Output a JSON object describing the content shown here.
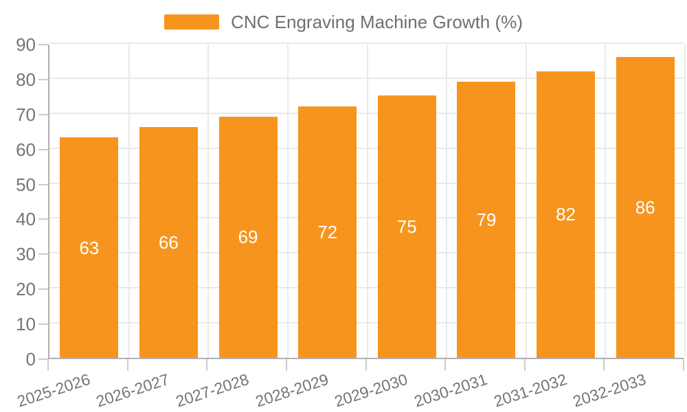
{
  "legend": {
    "label": "CNC Engraving Machine Growth (%)"
  },
  "chart_data": {
    "type": "bar",
    "title": "CNC Engraving Machine Growth (%)",
    "categories": [
      "2025-2026",
      "2026-2027",
      "2027-2028",
      "2028-2029",
      "2029-2030",
      "2030-2031",
      "2031-2032",
      "2032-2033"
    ],
    "values": [
      63,
      66,
      69,
      72,
      75,
      79,
      82,
      86
    ],
    "xlabel": "",
    "ylabel": "",
    "ylim": [
      0,
      90
    ],
    "yticks": [
      0,
      10,
      20,
      30,
      40,
      50,
      60,
      70,
      80,
      90
    ],
    "grid": true,
    "legend_position": "top-center",
    "x_tick_label_rotation_deg": -18,
    "colors": {
      "bar": "#f7941e",
      "value_label": "#ffffff",
      "axis_line": "#b0b0b0",
      "tick": "#cccccc",
      "grid": "#e9e9e9",
      "axis_text": "#757575",
      "legend_text": "#6f6f6f",
      "background": "#ffffff"
    }
  }
}
